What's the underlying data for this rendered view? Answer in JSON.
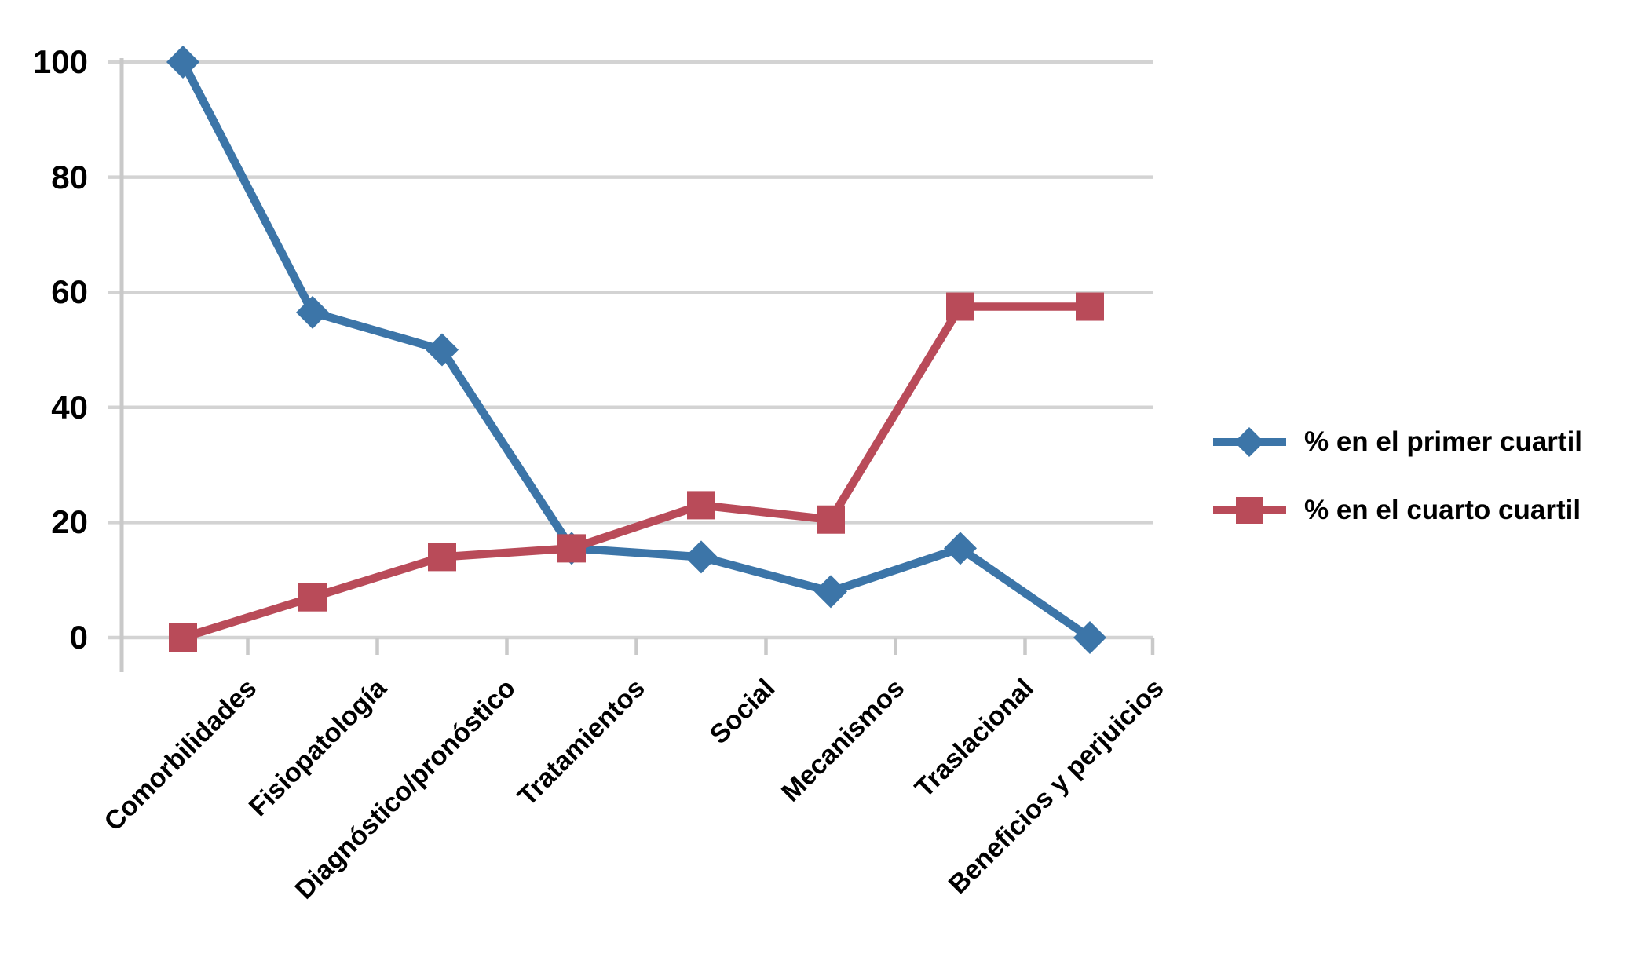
{
  "chart_data": {
    "type": "line",
    "title": "",
    "categories": [
      "Comorbilidades",
      "Fisiopatología",
      "Diagnóstico/pronóstico",
      "Tratamientos",
      "Social",
      "Mecanismos",
      "Traslacional",
      "Beneficios y perjuicios"
    ],
    "series": [
      {
        "name": "% en el primer cuartil",
        "marker": "diamond",
        "color": "#3C75A8",
        "values": [
          100,
          56.5,
          50,
          15.5,
          14,
          8,
          15.5,
          0
        ]
      },
      {
        "name": "% en el cuarto cuartil",
        "marker": "square",
        "color": "#B94B59",
        "values": [
          0,
          7,
          14,
          15.5,
          23,
          20.5,
          57.5,
          57.5
        ]
      }
    ],
    "y_axis": {
      "min": 0,
      "max": 100,
      "step": 20,
      "ticks": [
        0,
        20,
        40,
        60,
        80,
        100
      ],
      "tick_labels": [
        "0",
        "20",
        "40",
        "60",
        "80",
        "100"
      ]
    },
    "x_axis": {
      "label": "",
      "labels_rotated": true
    },
    "grid": "horizontal",
    "gridline_color": "#D3D3D3",
    "axis_color": "#C9C9C9",
    "background_color": "#FFFFFF",
    "text_color": "#000000",
    "legend_position": "right"
  }
}
